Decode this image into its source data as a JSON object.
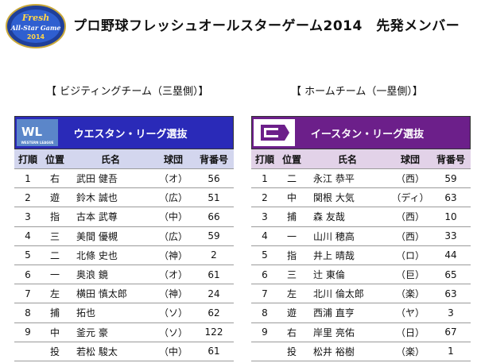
{
  "logo": {
    "line1": "Fresh",
    "line2": "All-Star Game",
    "year": "2014"
  },
  "page_title": "プロ野球フレッシュオールスターゲーム2014　先発メンバー",
  "headers": [
    "打順",
    "位置",
    "氏名",
    "球団",
    "背番号"
  ],
  "visitor": {
    "heading": "【 ビジティングチーム（三塁側）】",
    "team_name": "ウエスタン・リーグ選抜",
    "logo_text": "WL",
    "logo_subtext": "WESTERN LEAGUE",
    "rows": [
      {
        "order": "1",
        "pos": "右",
        "name": "武田 健吾",
        "team": "（オ）",
        "num": "56"
      },
      {
        "order": "2",
        "pos": "遊",
        "name": "鈴木 誠也",
        "team": "（広）",
        "num": "51"
      },
      {
        "order": "3",
        "pos": "指",
        "name": "古本 武尊",
        "team": "（中）",
        "num": "66"
      },
      {
        "order": "4",
        "pos": "三",
        "name": "美間 優槻",
        "team": "（広）",
        "num": "59"
      },
      {
        "order": "5",
        "pos": "二",
        "name": "北條 史也",
        "team": "（神）",
        "num": "2"
      },
      {
        "order": "6",
        "pos": "一",
        "name": "奥浪 鏡",
        "team": "（オ）",
        "num": "61"
      },
      {
        "order": "7",
        "pos": "左",
        "name": "横田 慎太郎",
        "team": "（神）",
        "num": "24"
      },
      {
        "order": "8",
        "pos": "捕",
        "name": "拓也",
        "team": "（ソ）",
        "num": "62"
      },
      {
        "order": "9",
        "pos": "中",
        "name": "釜元 豪",
        "team": "（ソ）",
        "num": "122"
      },
      {
        "order": "",
        "pos": "投",
        "name": "若松 駿太",
        "team": "（中）",
        "num": "61"
      }
    ]
  },
  "home": {
    "heading": "【 ホームチーム（一塁側）】",
    "team_name": "イースタン・リーグ選抜",
    "rows": [
      {
        "order": "1",
        "pos": "二",
        "name": "永江 恭平",
        "team": "（西）",
        "num": "59"
      },
      {
        "order": "2",
        "pos": "中",
        "name": "関根 大気",
        "team": "（ディ）",
        "num": "63"
      },
      {
        "order": "3",
        "pos": "捕",
        "name": "森 友哉",
        "team": "（西）",
        "num": "10"
      },
      {
        "order": "4",
        "pos": "一",
        "name": "山川 穂高",
        "team": "（西）",
        "num": "33"
      },
      {
        "order": "5",
        "pos": "指",
        "name": "井上 晴哉",
        "team": "（ロ）",
        "num": "44"
      },
      {
        "order": "6",
        "pos": "三",
        "name": "辻 東倫",
        "team": "（巨）",
        "num": "65"
      },
      {
        "order": "7",
        "pos": "左",
        "name": "北川 倫太郎",
        "team": "（楽）",
        "num": "63"
      },
      {
        "order": "8",
        "pos": "遊",
        "name": "西浦 直亨",
        "team": "（ヤ）",
        "num": "3"
      },
      {
        "order": "9",
        "pos": "右",
        "name": "岸里 亮佑",
        "team": "（日）",
        "num": "67"
      },
      {
        "order": "",
        "pos": "投",
        "name": "松井 裕樹",
        "team": "（楽）",
        "num": "1"
      }
    ]
  }
}
